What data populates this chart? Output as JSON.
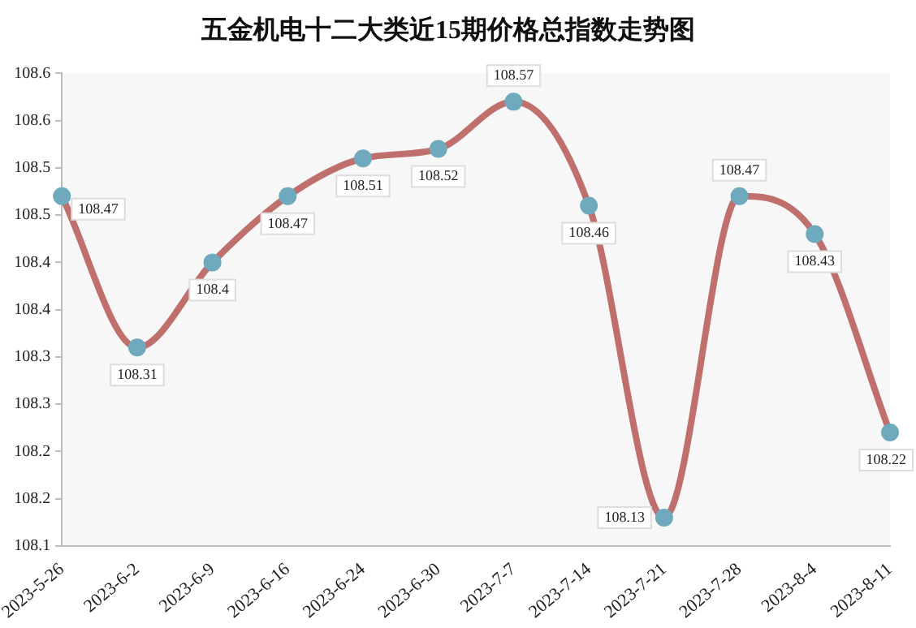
{
  "chart_data": {
    "type": "line",
    "title": "五金机电十二大类近15期价格总指数走势图",
    "categories": [
      "2023-5-26",
      "2023-6-2",
      "2023-6-9",
      "2023-6-16",
      "2023-6-24",
      "2023-6-30",
      "2023-7-7",
      "2023-7-14",
      "2023-7-21",
      "2023-7-28",
      "2023-8-4",
      "2023-8-11"
    ],
    "series": [
      {
        "color": "#c0706c",
        "values": [
          108.47,
          108.31,
          108.4,
          108.47,
          108.51,
          108.52,
          108.57,
          108.46,
          108.13,
          108.47,
          108.43,
          108.22
        ]
      }
    ],
    "ylim": [
      108.1,
      108.6
    ],
    "yticks": [
      108.1,
      {
        "value": 108.15,
        "label": "108.2"
      },
      108.2,
      {
        "value": 108.25,
        "label": "108.3"
      },
      108.3,
      {
        "value": 108.35,
        "label": "108.4"
      },
      108.4,
      {
        "value": 108.45,
        "label": "108.5"
      },
      108.5,
      {
        "value": 108.55,
        "label": "108.6"
      },
      108.6
    ],
    "data_labels": true,
    "grid": false,
    "legend": false,
    "marker": "circle",
    "line_style": "solid"
  }
}
